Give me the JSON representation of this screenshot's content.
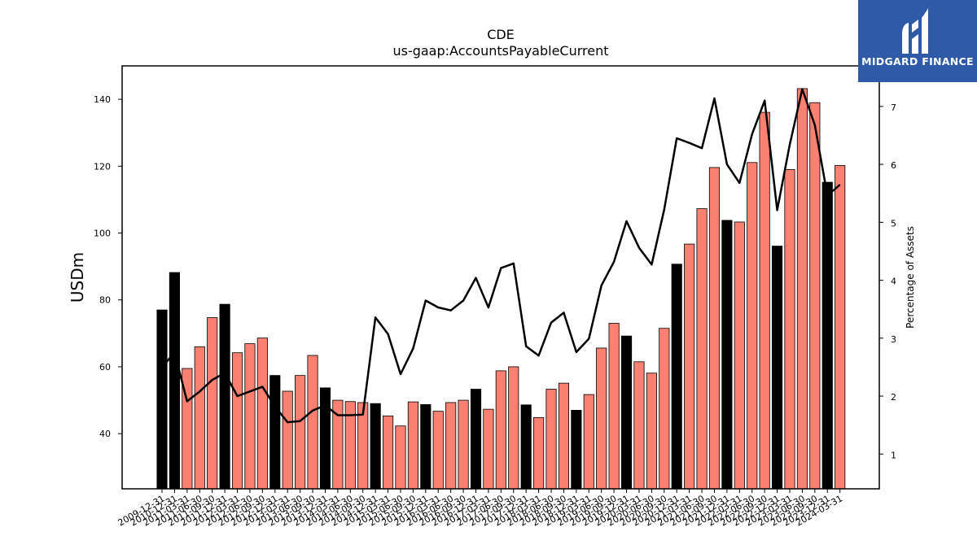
{
  "colors": {
    "highlight": "#000000",
    "regular": "#fa8072",
    "line": "#000000",
    "logo_bg": "#2f5aa8"
  },
  "logo": {
    "text": "MIDGARD FINANCE",
    "icon": "midgard-logo-icon"
  },
  "chart_data": {
    "type": "bar",
    "title": "CDE",
    "subtitle": "us-gaap:AccountsPayableCurrent",
    "ylabel": "USDm",
    "y2label": "Percentage of Assets",
    "ylim": [
      23.5,
      150
    ],
    "y2lim": [
      0.4,
      7.7
    ],
    "yticks": [
      40,
      60,
      80,
      100,
      120,
      140
    ],
    "y2ticks": [
      1,
      2,
      3,
      4,
      5,
      6,
      7
    ],
    "grid": false,
    "legend": "none",
    "categories": [
      "2009-12-31",
      "2010-12-31",
      "2011-03-31",
      "2011-06-30",
      "2011-09-30",
      "2011-12-31",
      "2012-03-31",
      "2012-06-30",
      "2012-09-30",
      "2012-12-31",
      "2013-03-31",
      "2013-06-30",
      "2013-09-30",
      "2013-12-31",
      "2014-03-31",
      "2014-06-30",
      "2014-09-30",
      "2014-12-31",
      "2015-03-31",
      "2015-06-30",
      "2015-09-30",
      "2015-12-31",
      "2016-03-31",
      "2016-06-30",
      "2016-09-30",
      "2016-12-31",
      "2017-03-31",
      "2017-06-30",
      "2017-09-30",
      "2017-12-31",
      "2018-03-31",
      "2018-06-30",
      "2018-09-30",
      "2018-12-31",
      "2019-03-31",
      "2019-06-30",
      "2019-09-30",
      "2019-12-31",
      "2020-03-31",
      "2020-06-30",
      "2020-09-30",
      "2020-12-31",
      "2021-03-31",
      "2021-06-30",
      "2021-09-30",
      "2021-12-31",
      "2022-03-31",
      "2022-06-30",
      "2022-09-30",
      "2022-12-31",
      "2023-03-31",
      "2023-06-30",
      "2023-09-30",
      "2023-12-31",
      "2024-03-31"
    ],
    "highlight": [
      true,
      true,
      false,
      false,
      false,
      true,
      false,
      false,
      false,
      true,
      false,
      false,
      false,
      true,
      false,
      false,
      false,
      true,
      false,
      false,
      false,
      true,
      false,
      false,
      false,
      true,
      false,
      false,
      false,
      true,
      false,
      false,
      false,
      true,
      false,
      false,
      false,
      true,
      false,
      false,
      false,
      true,
      false,
      false,
      false,
      true,
      false,
      false,
      false,
      true,
      false,
      false,
      false,
      true,
      false
    ],
    "series": [
      {
        "name": "",
        "type": "bar",
        "values": [
          77,
          88.2,
          59.5,
          66,
          74.7,
          78.7,
          64.2,
          66.9,
          68.6,
          57.4,
          52.7,
          57.4,
          63.4,
          53.7,
          50,
          49.6,
          49.3,
          49,
          45.3,
          42.3,
          49.5,
          48.7,
          46.7,
          49.3,
          50,
          53.3,
          47.3,
          58.8,
          60,
          48.6,
          44.8,
          53.3,
          55.1,
          47,
          51.7,
          65.6,
          73,
          69.2,
          61.5,
          58.1,
          71.5,
          90.7,
          96.7,
          107.3,
          119.6,
          103.8,
          103.3,
          121.1,
          136.1,
          96.1,
          119,
          143.2,
          139,
          115.2,
          120.2
        ]
      },
      {
        "name": "",
        "type": "line",
        "axis": "right",
        "values": [
          2.5,
          2.75,
          1.91,
          2.08,
          2.28,
          2.4,
          2.0,
          2.08,
          2.16,
          1.82,
          1.55,
          1.57,
          1.75,
          1.84,
          1.67,
          1.67,
          1.68,
          3.36,
          3.07,
          2.38,
          2.82,
          3.65,
          3.53,
          3.48,
          3.65,
          4.04,
          3.53,
          4.21,
          4.29,
          2.86,
          2.7,
          3.27,
          3.44,
          2.76,
          2.99,
          3.91,
          4.32,
          5.02,
          4.56,
          4.27,
          5.22,
          6.45,
          6.37,
          6.28,
          7.14,
          6.0,
          5.68,
          6.52,
          7.1,
          5.21,
          6.34,
          7.3,
          6.68,
          5.46,
          5.65
        ]
      }
    ]
  }
}
